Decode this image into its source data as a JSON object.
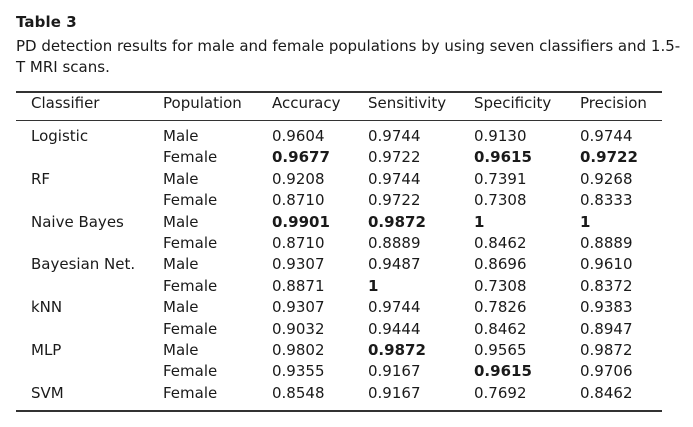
{
  "table_label": "Table 3",
  "caption": "PD detection results for male and female populations by using seven classifiers and 1.5-T MRI scans.",
  "headers": [
    "Classifier",
    "Population",
    "Accuracy",
    "Sensitivity",
    "Specificity",
    "Precision"
  ],
  "rows": [
    {
      "classifier": "Logistic",
      "population": "Male",
      "accuracy": "0.9604",
      "sensitivity": "0.9744",
      "specificity": "0.9130",
      "precision": "0.9744",
      "bold": []
    },
    {
      "classifier": "",
      "population": "Female",
      "accuracy": "0.9677",
      "sensitivity": "0.9722",
      "specificity": "0.9615",
      "precision": "0.9722",
      "bold": [
        "accuracy",
        "specificity",
        "precision"
      ]
    },
    {
      "classifier": "RF",
      "population": "Male",
      "accuracy": "0.9208",
      "sensitivity": "0.9744",
      "specificity": "0.7391",
      "precision": "0.9268",
      "bold": []
    },
    {
      "classifier": "",
      "population": "Female",
      "accuracy": "0.8710",
      "sensitivity": "0.9722",
      "specificity": "0.7308",
      "precision": "0.8333",
      "bold": []
    },
    {
      "classifier": "Naive Bayes",
      "population": "Male",
      "accuracy": "0.9901",
      "sensitivity": "0.9872",
      "specificity": "1",
      "precision": "1",
      "bold": [
        "accuracy",
        "sensitivity",
        "specificity",
        "precision"
      ]
    },
    {
      "classifier": "",
      "population": "Female",
      "accuracy": "0.8710",
      "sensitivity": "0.8889",
      "specificity": "0.8462",
      "precision": "0.8889",
      "bold": []
    },
    {
      "classifier": "Bayesian Net.",
      "population": "Male",
      "accuracy": "0.9307",
      "sensitivity": "0.9487",
      "specificity": "0.8696",
      "precision": "0.9610",
      "bold": []
    },
    {
      "classifier": "",
      "population": "Female",
      "accuracy": "0.8871",
      "sensitivity": "1",
      "specificity": "0.7308",
      "precision": "0.8372",
      "bold": [
        "sensitivity"
      ]
    },
    {
      "classifier": "kNN",
      "population": "Male",
      "accuracy": "0.9307",
      "sensitivity": "0.9744",
      "specificity": "0.7826",
      "precision": "0.9383",
      "bold": []
    },
    {
      "classifier": "",
      "population": "Female",
      "accuracy": "0.9032",
      "sensitivity": "0.9444",
      "specificity": "0.8462",
      "precision": "0.8947",
      "bold": []
    },
    {
      "classifier": "MLP",
      "population": "Male",
      "accuracy": "0.9802",
      "sensitivity": "0.9872",
      "specificity": "0.9565",
      "precision": "0.9872",
      "bold": [
        "sensitivity"
      ]
    },
    {
      "classifier": "",
      "population": "Female",
      "accuracy": "0.9355",
      "sensitivity": "0.9167",
      "specificity": "0.9615",
      "precision": "0.9706",
      "bold": [
        "specificity"
      ]
    },
    {
      "classifier": "SVM",
      "population": "Female",
      "accuracy": "0.8548",
      "sensitivity": "0.9167",
      "specificity": "0.7692",
      "precision": "0.8462",
      "bold": []
    }
  ]
}
